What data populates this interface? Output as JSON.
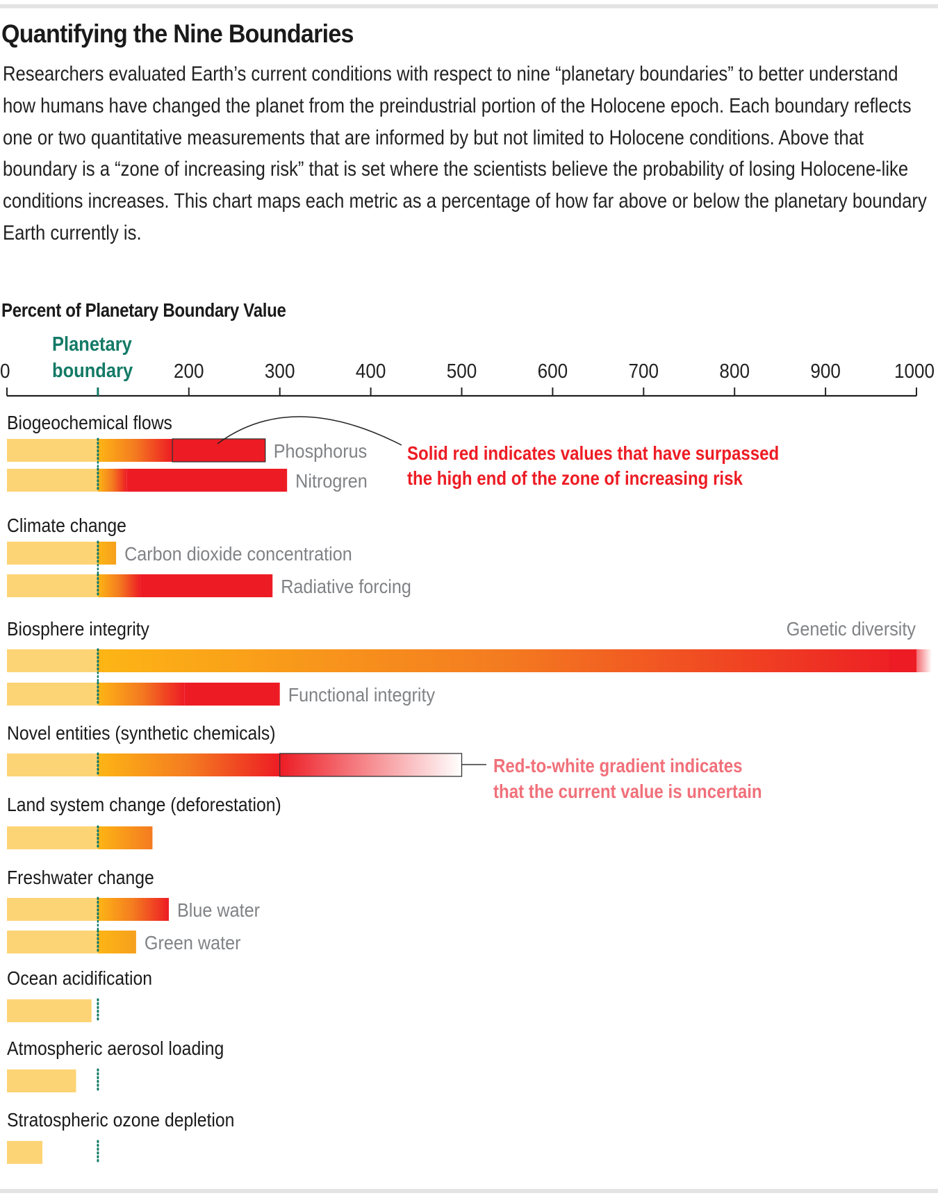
{
  "header": {
    "title": "Quantifying the Nine Boundaries",
    "intro": "Researchers evaluated Earth’s current conditions with respect to nine “planetary boundaries” to better understand how humans have changed the planet from the preindustrial portion of the Holocene epoch. Each boundary reflects one or two quantitative measurements that are informed by but not limited to Holocene conditions. Above that boundary is a “zone of increasing risk” that is set where the scientists believe the probability of losing Holocene-like conditions increases. This chart maps each metric as a percentage of how far above or below the planetary boundary Earth currently is."
  },
  "colors": {
    "safe": "#fdd475",
    "zone_start": "#fdb515",
    "zone_mid": "#f47b20",
    "high_risk": "#ed1c24",
    "boundary": "#137a66",
    "metric_label": "#808285",
    "uncertain_note": "#f0707a"
  },
  "chart_data": {
    "type": "bar",
    "orientation": "horizontal",
    "title": "Percent of Planetary Boundary Value",
    "xlabel": "Percent of Planetary Boundary Value",
    "ylabel": "",
    "xlim": [
      0,
      1000
    ],
    "xticks": [
      0,
      200,
      300,
      400,
      500,
      600,
      700,
      800,
      900,
      1000
    ],
    "tick_labels": [
      "0",
      "200",
      "300",
      "400",
      "500",
      "600",
      "700",
      "800",
      "900",
      "1000"
    ],
    "boundary": {
      "value": 100,
      "label_line1": "Planetary",
      "label_line2": "boundary"
    },
    "groups": [
      {
        "name": "Biogeochemical flows",
        "metrics": [
          {
            "name": "Phosphorus",
            "value": 284,
            "red_from": 182,
            "highlight": true
          },
          {
            "name": "Nitrogren",
            "value": 308,
            "red_from": 132
          }
        ]
      },
      {
        "name": "Climate change",
        "metrics": [
          {
            "name": "Carbon dioxide concentration",
            "value": 120,
            "red_from": null
          },
          {
            "name": "Radiative forcing",
            "value": 292,
            "red_from": 147
          }
        ]
      },
      {
        "name": "Biosphere integrity",
        "metrics": [
          {
            "name": "Genetic diversity",
            "value": 1000,
            "red_from": 970,
            "exceeds_axis": true,
            "label_position": "above-right"
          },
          {
            "name": "Functional integrity",
            "value": 300,
            "red_from": 195
          }
        ]
      },
      {
        "name": "Novel entities (synthetic chemicals)",
        "metrics": [
          {
            "name": "",
            "value": 500,
            "red_from": 300,
            "uncertain_from": 300
          }
        ]
      },
      {
        "name": "Land system change (deforestation)",
        "metrics": [
          {
            "name": "",
            "value": 160,
            "red_from": null
          }
        ]
      },
      {
        "name": "Freshwater change",
        "metrics": [
          {
            "name": "Blue water",
            "value": 178,
            "red_from": null
          },
          {
            "name": "Green water",
            "value": 142,
            "red_from": null
          }
        ]
      },
      {
        "name": "Ocean acidification",
        "metrics": [
          {
            "name": "",
            "value": 93,
            "red_from": null
          }
        ]
      },
      {
        "name": "Atmospheric aerosol loading",
        "metrics": [
          {
            "name": "",
            "value": 76,
            "red_from": null
          }
        ]
      },
      {
        "name": "Stratospheric ozone depletion",
        "metrics": [
          {
            "name": "",
            "value": 39,
            "red_from": null
          }
        ]
      }
    ],
    "annotations": [
      {
        "text_line1": "Solid red indicates values that have surpassed",
        "text_line2": "the high end of the zone of increasing risk",
        "points_to": "Phosphorus",
        "color": "red"
      },
      {
        "text_line1": "Red-to-white gradient indicates",
        "text_line2": "that the current value is uncertain",
        "points_to": "Novel entities (synthetic chemicals)",
        "color": "pink"
      }
    ]
  }
}
